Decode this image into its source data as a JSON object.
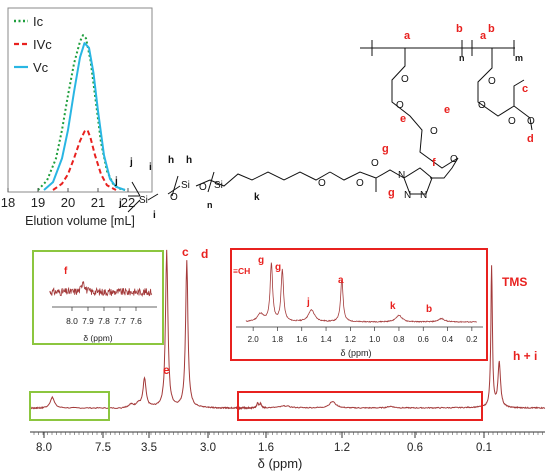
{
  "gpc_inset": {
    "chart_data": {
      "type": "line",
      "xlabel": "Elution volume [mL]",
      "xlim": [
        18,
        22.8
      ],
      "ylim": [
        0,
        1.0
      ],
      "xticks": [
        "18",
        "19",
        "20",
        "21",
        "22"
      ],
      "series": [
        {
          "name": "Ic",
          "style": "dotted",
          "color": "#1e9e3c",
          "x": [
            19.0,
            19.3,
            19.6,
            19.8,
            20.0,
            20.2,
            20.4,
            20.5,
            20.6,
            20.75,
            20.9,
            21.1,
            21.3,
            21.5,
            21.7,
            21.9
          ],
          "y": [
            0.0,
            0.06,
            0.2,
            0.38,
            0.6,
            0.8,
            0.94,
            0.98,
            0.96,
            0.82,
            0.6,
            0.3,
            0.12,
            0.04,
            0.01,
            0.0
          ]
        },
        {
          "name": "IVc",
          "style": "dashed",
          "color": "#e8211f",
          "x": [
            19.5,
            19.8,
            20.0,
            20.2,
            20.4,
            20.55,
            20.65,
            20.75,
            20.9,
            21.1,
            21.3,
            21.6
          ],
          "y": [
            0.0,
            0.04,
            0.1,
            0.2,
            0.31,
            0.37,
            0.38,
            0.33,
            0.22,
            0.1,
            0.03,
            0.0
          ]
        },
        {
          "name": "Vc",
          "style": "solid",
          "color": "#29b6e3",
          "x": [
            19.2,
            19.5,
            19.8,
            20.0,
            20.2,
            20.4,
            20.55,
            20.7,
            20.85,
            21.0,
            21.2,
            21.4,
            21.6,
            21.9
          ],
          "y": [
            0.0,
            0.05,
            0.2,
            0.38,
            0.62,
            0.84,
            0.93,
            0.9,
            0.74,
            0.5,
            0.22,
            0.07,
            0.02,
            0.0
          ]
        }
      ]
    }
  },
  "nmr": {
    "chart_data": {
      "type": "line",
      "xlabel": "δ (ppm)",
      "x_reversed": true,
      "xlim": [
        8.5,
        -0.7
      ],
      "xticks": [
        "8.0",
        "7.5",
        "3.5",
        "3.0",
        "1.6",
        "1.2",
        "0.6",
        "0.1"
      ],
      "peaks": [
        {
          "label": "f",
          "ppm": 7.93,
          "height": 0.07
        },
        {
          "label": "e",
          "ppm": 3.55,
          "height": 0.18
        },
        {
          "label": "c",
          "ppm": 3.35,
          "height": 0.98
        },
        {
          "label": "d",
          "ppm": 3.18,
          "height": 0.92
        },
        {
          "label": "a",
          "ppm": 1.25,
          "height": 0.04
        },
        {
          "label": "TMS",
          "ppm": 0.0,
          "height": 0.88
        },
        {
          "label": "h + i",
          "ppm": -0.1,
          "height": 0.28
        }
      ],
      "series": [
        {
          "color": "#a33a3a"
        }
      ]
    },
    "peak_labels": {
      "c": "c",
      "d": "d",
      "e": "e",
      "tms": "TMS",
      "hi": "h + i"
    }
  },
  "aromatic_inset": {
    "chart_data": {
      "type": "line",
      "xlabel": "δ (ppm)",
      "xlim": [
        8.2,
        7.45
      ],
      "xticks": [
        "8.0",
        "7.9",
        "7.8",
        "7.7",
        "7.6"
      ],
      "peaks": [
        {
          "label": "f",
          "ppm": 7.93,
          "height": 0.55
        }
      ]
    },
    "peak_label": "f"
  },
  "aliphatic_inset": {
    "chart_data": {
      "type": "line",
      "xlabel": "δ (ppm)",
      "xlim": [
        2.1,
        0.1
      ],
      "xticks": [
        "2.0",
        "1.8",
        "1.6",
        "1.4",
        "1.2",
        "1.0",
        "0.8",
        "0.6",
        "0.4",
        "0.2"
      ],
      "peaks": [
        {
          "label": "≡CH",
          "ppm": 1.94,
          "height": 0.12
        },
        {
          "label": "g",
          "ppm": 1.85,
          "height": 0.88
        },
        {
          "label": "g",
          "ppm": 1.76,
          "height": 0.78
        },
        {
          "label": "j",
          "ppm": 1.52,
          "height": 0.18
        },
        {
          "label": "a",
          "ppm": 1.27,
          "height": 0.65
        },
        {
          "label": "k",
          "ppm": 0.8,
          "height": 0.1
        },
        {
          "label": "b",
          "ppm": 0.45,
          "height": 0.05
        }
      ]
    },
    "labels": {
      "ch": "≡CH",
      "g1": "g",
      "g2": "g",
      "j": "j",
      "a": "a",
      "k": "k",
      "b": "b"
    }
  },
  "structure": {
    "labels": {
      "a1": "a",
      "b1": "b",
      "a2": "a",
      "b2": "b",
      "n": "n",
      "m": "m",
      "c": "c",
      "d": "d",
      "e1": "e",
      "e2": "e",
      "f": "f",
      "g1": "g",
      "g2": "g",
      "h1": "h",
      "h2": "h",
      "i1": "i",
      "i2": "i",
      "j1": "j",
      "j2": "j",
      "j3": "j",
      "k": "k",
      "n2": "n"
    },
    "atoms": {
      "si": "Si",
      "o": "O",
      "n_atom": "N"
    }
  },
  "colors": {
    "red_box": "#e8211f",
    "green_box": "#8cc63f",
    "spectrum": "#a33a3a"
  }
}
